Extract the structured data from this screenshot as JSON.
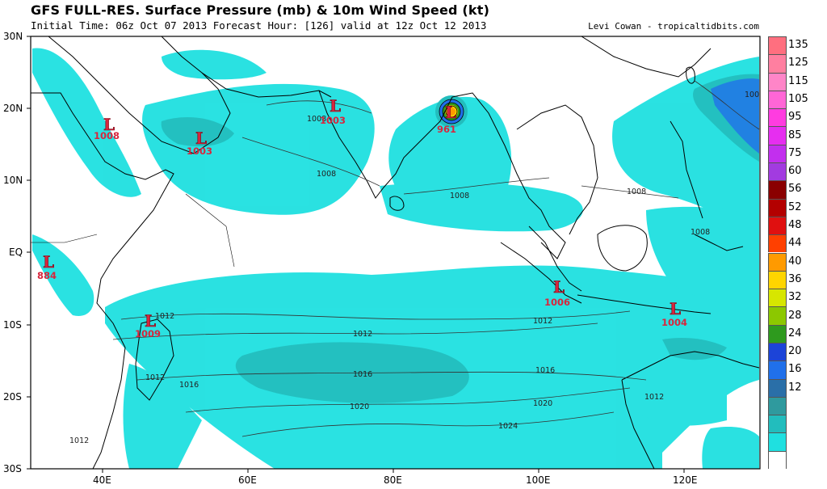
{
  "header": {
    "title": "GFS FULL-RES. Surface Pressure (mb) & 10m Wind Speed (kt)",
    "subtitle": "Initial Time: 06z Oct 07 2013 Forecast Hour: [126] valid at 12z Oct 12 2013",
    "credit": "Levi Cowan - tropicaltidbits.com"
  },
  "axes": {
    "lat_labels": [
      "30N",
      "20N",
      "10N",
      "EQ",
      "10S",
      "20S",
      "30S"
    ],
    "lon_labels": [
      "40E",
      "60E",
      "80E",
      "100E",
      "120E"
    ]
  },
  "lows": [
    {
      "label": "L",
      "value": "1008"
    },
    {
      "label": "L",
      "value": "1003"
    },
    {
      "label": "L",
      "value": "1003"
    },
    {
      "label": "L",
      "value": "961"
    },
    {
      "label": "L",
      "value": "884"
    },
    {
      "label": "L",
      "value": "1009"
    },
    {
      "label": "L",
      "value": "1006"
    },
    {
      "label": "L",
      "value": "1004"
    }
  ],
  "isobar_labels": [
    "1008",
    "1008",
    "1008",
    "1008",
    "1008",
    "1012",
    "1012",
    "1012",
    "1012",
    "1016",
    "1016",
    "1016",
    "1020",
    "1020",
    "1024",
    "1012",
    "1012",
    "100"
  ],
  "colorbar": {
    "labels": [
      "135",
      "125",
      "115",
      "105",
      "95",
      "85",
      "75",
      "60",
      "56",
      "52",
      "48",
      "44",
      "40",
      "36",
      "32",
      "28",
      "24",
      "20",
      "16",
      "12",
      ""
    ],
    "colors": [
      "#ff6f7f",
      "#ff7fa0",
      "#ff85c8",
      "#ff66d6",
      "#ff3ce0",
      "#e62ef0",
      "#c22fee",
      "#a23be0",
      "#8a0000",
      "#b30000",
      "#e01010",
      "#ff4000",
      "#ff9a00",
      "#ffd500",
      "#d7e600",
      "#8cc800",
      "#2e9a1e",
      "#1c44d8",
      "#2070ea",
      "#2a6fa8",
      "#2f9a9e",
      "#22bdbd",
      "#1fe0e0",
      "#ffffff"
    ]
  },
  "chart_data": {
    "type": "map",
    "title": "GFS FULL-RES. Surface Pressure (mb) & 10m Wind Speed (kt)",
    "lows_mb": [
      1008,
      1003,
      1003,
      961,
      884,
      1009,
      1006,
      1004
    ],
    "isobars_mb": [
      1008,
      1012,
      1016,
      1020,
      1024
    ],
    "wind_scale_kt": [
      12,
      16,
      20,
      24,
      28,
      32,
      36,
      40,
      44,
      48,
      52,
      56,
      60,
      75,
      85,
      95,
      105,
      115,
      125,
      135
    ],
    "lon_range": [
      "30E",
      "130E"
    ],
    "lat_range": [
      "30S",
      "30N"
    ]
  }
}
